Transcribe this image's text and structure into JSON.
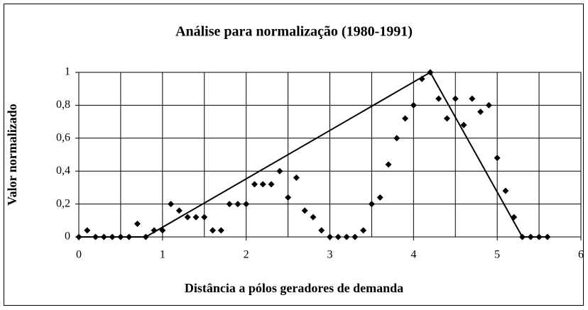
{
  "chart_data": {
    "type": "scatter",
    "title": "Análise para normalização (1980-1991)",
    "x_label": "Distância a pólos geradores de demanda",
    "y_label": "Valor normalizado",
    "xlim": [
      0,
      6
    ],
    "xticks": [
      0,
      1,
      2,
      3,
      4,
      5,
      6
    ],
    "xgrid": [
      0,
      0.5,
      1,
      1.5,
      2,
      2.5,
      3,
      3.5,
      4,
      4.5,
      5,
      5.5,
      6
    ],
    "ylim": [
      0,
      1
    ],
    "yticks": [
      0,
      {
        "value": 0.2,
        "label": "0,2"
      },
      {
        "value": 0.4,
        "label": "0,4"
      },
      {
        "value": 0.6,
        "label": "0,6"
      },
      {
        "value": 0.8,
        "label": "0,8"
      },
      1
    ],
    "grid": true,
    "series": [
      {
        "kind": "markers",
        "color": "#000000",
        "x": [
          0,
          0.1,
          0.2,
          0.3,
          0.4,
          0.5,
          0.6,
          0.7,
          0.8,
          0.9,
          1.0,
          1.1,
          1.2,
          1.3,
          1.4,
          1.5,
          1.6,
          1.7,
          1.8,
          1.9,
          2.0,
          2.1,
          2.2,
          2.3,
          2.4,
          2.5,
          2.6,
          2.7,
          2.8,
          2.9,
          3.0,
          3.1,
          3.2,
          3.3,
          3.4,
          3.5,
          3.6,
          3.7,
          3.8,
          3.9,
          4.0,
          4.1,
          4.2,
          4.3,
          4.4,
          4.5,
          4.6,
          4.7,
          4.8,
          4.9,
          5.0,
          5.1,
          5.2,
          5.3,
          5.4,
          5.5,
          5.6
        ],
        "values": [
          0,
          0.04,
          0,
          0,
          0,
          0,
          0,
          0.08,
          0,
          0.04,
          0.04,
          0.2,
          0.16,
          0.12,
          0.12,
          0.12,
          0.04,
          0.04,
          0.2,
          0.2,
          0.2,
          0.32,
          0.32,
          0.32,
          0.4,
          0.24,
          0.36,
          0.16,
          0.12,
          0.04,
          0,
          0,
          0,
          0,
          0.04,
          0.2,
          0.24,
          0.44,
          0.6,
          0.72,
          0.8,
          0.96,
          1,
          0.84,
          0.72,
          0.84,
          0.68,
          0.84,
          0.76,
          0.8,
          0.48,
          0.28,
          0.12,
          0,
          0,
          0,
          0
        ]
      },
      {
        "kind": "line",
        "color": "#000000",
        "x": [
          0,
          0.8,
          4.2,
          5.3,
          5.6
        ],
        "values": [
          0,
          0,
          1,
          0,
          0
        ]
      }
    ]
  }
}
